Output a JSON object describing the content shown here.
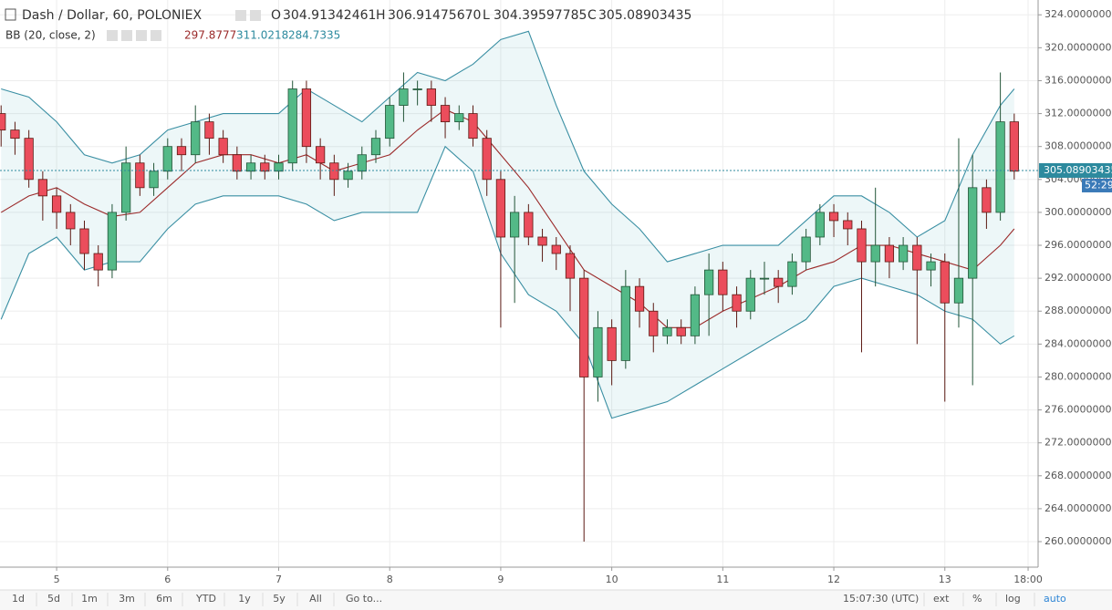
{
  "header": {
    "symbol": "Dash / Dollar, 60, POLONIEX",
    "ohlc": [
      {
        "label": "O",
        "value": "304.91342461"
      },
      {
        "label": "H",
        "value": "306.91475670"
      },
      {
        "label": "L",
        "value": "304.39597785"
      },
      {
        "label": "C",
        "value": "305.08903435"
      }
    ],
    "indicator": "BB (20, close, 2)",
    "indicator_values": [
      "297.8777",
      "311.0218",
      "284.7335"
    ]
  },
  "chart_data": {
    "type": "candlestick",
    "xlim": [
      4.49,
      13.84
    ],
    "ylim": [
      256.9,
      325.8
    ],
    "xticks": [
      5,
      6,
      7,
      8,
      9,
      10,
      11,
      12,
      13,
      {
        "value": 13.75,
        "label": "18:00"
      }
    ],
    "yticks": [
      {
        "value": 260,
        "label": "260.00000000"
      },
      {
        "value": 264,
        "label": "264.00000000"
      },
      {
        "value": 268,
        "label": "268.00000000"
      },
      {
        "value": 272,
        "label": "272.00000000"
      },
      {
        "value": 276,
        "label": "276.00000000"
      },
      {
        "value": 280,
        "label": "280.00000000"
      },
      {
        "value": 284,
        "label": "284.00000000"
      },
      {
        "value": 288,
        "label": "288.00000000"
      },
      {
        "value": 292,
        "label": "292.00000000"
      },
      {
        "value": 296,
        "label": "296.00000000"
      },
      {
        "value": 300,
        "label": "300.00000000"
      },
      {
        "value": 304,
        "label": "304.00000000"
      },
      {
        "value": 308,
        "label": "308.00000000"
      },
      {
        "value": 312,
        "label": "312.00000000"
      },
      {
        "value": 316,
        "label": "316.00000000"
      },
      {
        "value": 320,
        "label": "320.00000000"
      },
      {
        "value": 324,
        "label": "324.00000000"
      }
    ],
    "grid": true,
    "up_color": "#53b987",
    "down_color": "#eb4d5c",
    "x": [
      4.5,
      4.625,
      4.75,
      4.875,
      5,
      5.125,
      5.25,
      5.375,
      5.5,
      5.625,
      5.75,
      5.875,
      6,
      6.125,
      6.25,
      6.375,
      6.5,
      6.625,
      6.75,
      6.875,
      7,
      7.125,
      7.25,
      7.375,
      7.5,
      7.625,
      7.75,
      7.875,
      8,
      8.125,
      8.25,
      8.375,
      8.5,
      8.625,
      8.75,
      8.875,
      9,
      9.125,
      9.25,
      9.375,
      9.5,
      9.625,
      9.75,
      9.875,
      10,
      10.125,
      10.25,
      10.375,
      10.5,
      10.625,
      10.75,
      10.875,
      11,
      11.125,
      11.25,
      11.375,
      11.5,
      11.625,
      11.75,
      11.875,
      12,
      12.125,
      12.25,
      12.375,
      12.5,
      12.625,
      12.75,
      12.875,
      13,
      13.125,
      13.25,
      13.375,
      13.5,
      13.625
    ],
    "open": [
      312,
      310,
      309,
      304,
      302,
      300,
      298,
      295,
      293,
      300,
      306,
      303,
      305,
      308,
      307,
      311,
      309,
      307,
      305,
      306,
      305,
      306,
      315,
      308,
      306,
      304,
      305,
      307,
      309,
      313,
      315,
      315,
      313,
      311,
      312,
      309,
      304,
      297,
      300,
      297,
      296,
      295,
      292,
      280,
      286,
      282,
      291,
      288,
      285,
      286,
      285,
      290,
      293,
      290,
      288,
      292,
      292,
      291,
      294,
      297,
      300,
      299,
      298,
      294,
      296,
      294,
      296,
      293,
      294,
      289,
      292,
      303,
      300,
      311
    ],
    "high": [
      313,
      311,
      310,
      305,
      303,
      301,
      299,
      296,
      301,
      308,
      307,
      306,
      309,
      309,
      313,
      312,
      310,
      308,
      307,
      307,
      307,
      316,
      316,
      309,
      307,
      306,
      308,
      310,
      314,
      317,
      316,
      316,
      314,
      313,
      313,
      310,
      305,
      302,
      301,
      298,
      297,
      296,
      293,
      288,
      287,
      293,
      292,
      289,
      287,
      287,
      291,
      295,
      294,
      291,
      293,
      294,
      293,
      295,
      298,
      301,
      301,
      300,
      299,
      303,
      297,
      297,
      297,
      295,
      295,
      309,
      307,
      304,
      317,
      312
    ],
    "low": [
      308,
      307,
      303,
      299,
      298,
      296,
      293,
      291,
      292,
      299,
      302,
      302,
      304,
      305,
      306,
      307,
      306,
      304,
      304,
      304,
      304,
      305,
      306,
      304,
      302,
      303,
      304,
      306,
      308,
      311,
      313,
      311,
      309,
      310,
      308,
      302,
      286,
      289,
      296,
      294,
      293,
      288,
      260,
      277,
      279,
      281,
      286,
      283,
      284,
      284,
      284,
      285,
      288,
      286,
      287,
      290,
      289,
      290,
      293,
      296,
      297,
      296,
      283,
      291,
      292,
      293,
      284,
      291,
      277,
      286,
      279,
      298,
      299,
      304
    ],
    "close": [
      310,
      309,
      304,
      302,
      300,
      298,
      295,
      293,
      300,
      306,
      303,
      305,
      308,
      307,
      311,
      309,
      307,
      305,
      306,
      305,
      306,
      315,
      308,
      306,
      304,
      305,
      307,
      309,
      313,
      315,
      315,
      313,
      311,
      312,
      309,
      304,
      297,
      300,
      297,
      296,
      295,
      292,
      280,
      286,
      282,
      291,
      288,
      285,
      286,
      285,
      290,
      293,
      290,
      288,
      292,
      292,
      291,
      294,
      297,
      300,
      299,
      298,
      294,
      296,
      294,
      296,
      293,
      294,
      289,
      292,
      303,
      300,
      311,
      305
    ],
    "bands": {
      "x": [
        4.5,
        4.75,
        5,
        5.25,
        5.5,
        5.75,
        6,
        6.25,
        6.5,
        6.75,
        7,
        7.25,
        7.5,
        7.75,
        8,
        8.25,
        8.5,
        8.75,
        9,
        9.25,
        9.5,
        9.75,
        10,
        10.25,
        10.5,
        10.75,
        11,
        11.25,
        11.5,
        11.75,
        12,
        12.25,
        12.5,
        12.75,
        13,
        13.25,
        13.5,
        13.625
      ],
      "upper": [
        315,
        314,
        311,
        307,
        306,
        307,
        310,
        311,
        312,
        312,
        312,
        315,
        313,
        311,
        314,
        317,
        316,
        318,
        321,
        322,
        313,
        305,
        301,
        298,
        294,
        295,
        296,
        296,
        296,
        299,
        302,
        302,
        300,
        297,
        299,
        307,
        313,
        315
      ],
      "middle": [
        300,
        302,
        303,
        301,
        299.5,
        300,
        303,
        306,
        307,
        307,
        306,
        307,
        305,
        306,
        307,
        310,
        312.5,
        311,
        307,
        303,
        298,
        293,
        291,
        289,
        286,
        286,
        288,
        289.5,
        291,
        293,
        294,
        296,
        296,
        295,
        294,
        293,
        296,
        298
      ],
      "lower": [
        287,
        295,
        297,
        293,
        294,
        294,
        298,
        301,
        302,
        302,
        302,
        301,
        299,
        300,
        300,
        300,
        308,
        305,
        295,
        290,
        288,
        284,
        275,
        276,
        277,
        279,
        281,
        283,
        285,
        287,
        291,
        292,
        291,
        290,
        288,
        287,
        284,
        285
      ],
      "upper_color": "#3a8fa3",
      "middle_color": "#9b2a2a",
      "lower_color": "#3a8fa3"
    },
    "last_price": 305.08903435,
    "countdown": "52:29"
  },
  "toolbar": {
    "ranges": [
      "1d",
      "5d",
      "1m",
      "3m",
      "6m",
      "YTD",
      "1y",
      "5y",
      "All"
    ],
    "goto": "Go to...",
    "clock": "15:07:30 (UTC)",
    "options": [
      "ext",
      "%",
      "log",
      "auto"
    ]
  }
}
